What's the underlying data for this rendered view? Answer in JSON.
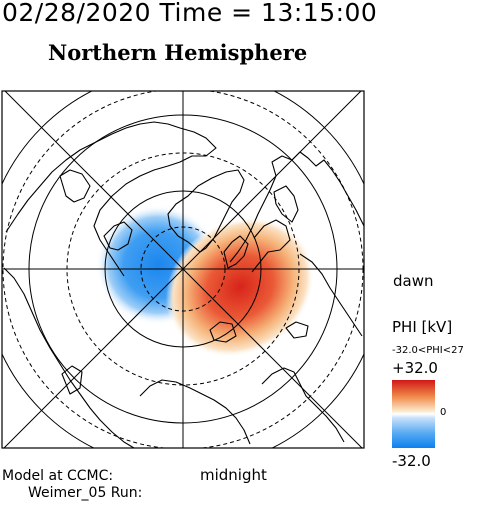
{
  "header": {
    "datetime": "02/28/2020 Time = 13:15:00",
    "hemisphere": "Northern Hemisphere"
  },
  "map": {
    "type": "polar potential map",
    "labels": {
      "dawn": "dawn",
      "midnight": "midnight"
    },
    "latitude_rings": 6,
    "meridians": 8,
    "potential_cells": [
      {
        "name": "negative cell",
        "sign": "negative",
        "color": "#1f8df0"
      },
      {
        "name": "positive cell",
        "sign": "positive",
        "color": "#dc2a1c"
      }
    ]
  },
  "colorbar": {
    "title": "PHI [kV]",
    "range_text": "-32.0<PHI<27",
    "max_label": "+32.0",
    "mid_label": "0",
    "min_label": "-32.0",
    "colors": {
      "max": "#d01818",
      "mid": "#ffffff",
      "min": "#0c80ee"
    }
  },
  "footer": {
    "model_line1": "Model at CCMC:",
    "model_line2": "Weimer_05 Run:"
  }
}
